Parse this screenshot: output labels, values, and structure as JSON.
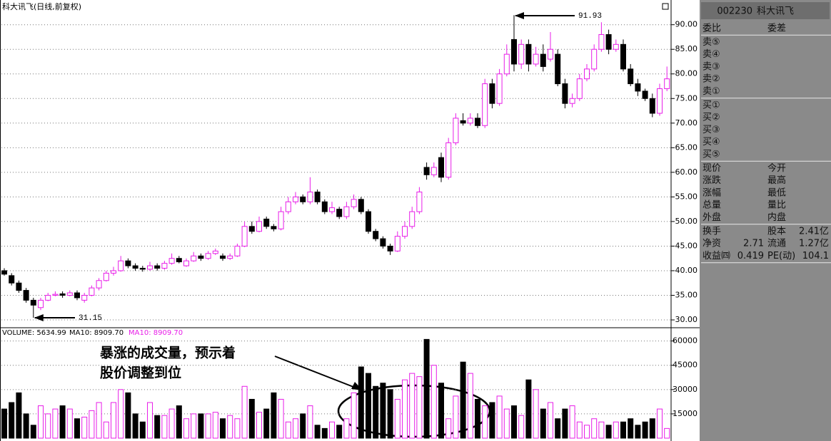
{
  "chart_data": [
    {
      "type": "candlestick",
      "title": "科大讯飞(日线,前复权)",
      "open": [
        40,
        39,
        37.5,
        36,
        34,
        32.5,
        34,
        35,
        35.3,
        35,
        35.5,
        34,
        35,
        36.5,
        38,
        39.5,
        40,
        42,
        41,
        40.5,
        40.3,
        41,
        40.5,
        41.5,
        42.5,
        41,
        42,
        43,
        42.5,
        43.5,
        43,
        42.5,
        43,
        45,
        49,
        48,
        50.5,
        49,
        48.5,
        52,
        54,
        55,
        54,
        56,
        54,
        52,
        52.5,
        51,
        53,
        54.5,
        52,
        48,
        46.5,
        45,
        44,
        47,
        49,
        52,
        61,
        59.5,
        63,
        59,
        66,
        70.5,
        70,
        71,
        69.5,
        78,
        74,
        80,
        87,
        82,
        86,
        82,
        84,
        83,
        84,
        78,
        74,
        75,
        79,
        81,
        85,
        88,
        85,
        86,
        81,
        78,
        76.5,
        75,
        72,
        77
      ],
      "high": [
        40.5,
        39.5,
        38,
        36.5,
        34.5,
        34.5,
        35.5,
        35.8,
        35.8,
        36,
        36,
        35.5,
        37,
        38.5,
        40,
        40.8,
        43,
        42.5,
        41.5,
        41,
        41.8,
        41.5,
        42,
        43.5,
        43,
        42.5,
        43.8,
        43.5,
        44,
        44.5,
        43.5,
        43.5,
        45.5,
        50,
        50,
        51,
        51,
        49.5,
        53,
        55,
        56,
        55.5,
        59,
        56.5,
        54.5,
        54,
        53,
        54,
        55.5,
        55,
        52.5,
        48.5,
        47,
        45.5,
        48,
        50,
        53,
        57,
        62,
        62,
        64,
        67,
        72,
        72,
        72,
        72,
        79,
        79,
        81,
        86,
        91.93,
        87,
        87,
        85.5,
        86,
        88.5,
        85,
        79,
        76,
        80,
        82,
        86,
        90.5,
        89,
        87,
        87,
        82,
        79,
        77,
        76,
        78,
        81.5
      ],
      "low": [
        39,
        37,
        35.5,
        33.5,
        31.15,
        32,
        33.8,
        34.8,
        34.5,
        34.8,
        34,
        33.5,
        34.8,
        36,
        37.8,
        39,
        39.8,
        40.5,
        40,
        39.8,
        40,
        40,
        40.2,
        41.2,
        41.5,
        40.8,
        41.8,
        42,
        42.2,
        43.2,
        42,
        42.2,
        42.8,
        44.8,
        47.5,
        47.8,
        48.5,
        48,
        48.2,
        51.5,
        53.5,
        53.5,
        53.5,
        53.5,
        51.5,
        51.5,
        50.5,
        50.5,
        52.5,
        51.5,
        47.5,
        46,
        44.5,
        43.2,
        43.8,
        46.5,
        48.5,
        51.5,
        58.5,
        59,
        58,
        58.5,
        65.5,
        69.5,
        69.5,
        69,
        69,
        73,
        73.5,
        79.5,
        80.5,
        81,
        80.5,
        81.5,
        80.5,
        82.5,
        77.5,
        73,
        73.2,
        74.5,
        78.5,
        80.5,
        84.5,
        84,
        84.5,
        80.5,
        77.5,
        75.5,
        74.5,
        71.2,
        71.5,
        76.5
      ],
      "close": [
        39.3,
        37.5,
        36,
        34,
        33,
        34,
        35,
        35.2,
        35,
        35.5,
        34.5,
        35,
        36.5,
        38,
        39.5,
        40,
        42,
        41,
        40.5,
        40.3,
        41,
        40.5,
        41.5,
        42.5,
        41.8,
        42,
        43,
        42.5,
        43.5,
        44,
        42.5,
        43,
        45,
        49,
        48,
        50,
        49,
        48.5,
        52,
        54,
        55,
        54,
        56,
        54,
        52,
        52.8,
        51,
        53,
        54.5,
        52,
        48,
        46.5,
        45,
        44,
        47,
        49,
        52,
        56,
        59.5,
        61,
        59,
        66,
        71,
        70,
        71,
        69.5,
        78,
        74,
        80,
        84,
        82,
        86,
        82,
        84,
        81.5,
        85,
        78,
        74,
        75,
        79,
        81,
        85,
        88,
        85,
        86,
        81,
        78,
        76.5,
        75,
        72,
        77,
        79
      ],
      "up_color": "#e81ee8",
      "down_color": "#000000",
      "ylim": [
        28.7,
        94.3
      ],
      "yticks": [
        {
          "value": 30,
          "label": "30.00"
        },
        {
          "value": 35,
          "label": "35.00"
        },
        {
          "value": 40,
          "label": "40.00"
        },
        {
          "value": 45,
          "label": "45.00"
        },
        {
          "value": 50,
          "label": "50.00"
        },
        {
          "value": 55,
          "label": "55.00"
        },
        {
          "value": 60,
          "label": "60.00"
        },
        {
          "value": 65,
          "label": "65.00"
        },
        {
          "value": 70,
          "label": "70.00"
        },
        {
          "value": 75,
          "label": "75.00"
        },
        {
          "value": 80,
          "label": "80.00"
        },
        {
          "value": 85,
          "label": "85.00"
        },
        {
          "value": 90,
          "label": "90.00"
        }
      ],
      "grid": true,
      "max_label": 91.93,
      "min_label": 31.15
    },
    {
      "type": "bar",
      "volume_label": "VOLUME: 5634.99",
      "ma_labels": [
        "MA10: 8909.70",
        "MA10: 8909.70"
      ],
      "values": [
        18000,
        22000,
        28000,
        15000,
        8000,
        20000,
        15000,
        18000,
        20000,
        18000,
        12000,
        13000,
        17000,
        22000,
        10000,
        22000,
        30000,
        28000,
        15000,
        10000,
        22000,
        14000,
        14000,
        18000,
        20000,
        12000,
        15000,
        15000,
        15000,
        16000,
        12000,
        14000,
        12000,
        32000,
        24000,
        16000,
        18000,
        28000,
        24000,
        10000,
        12000,
        15000,
        20000,
        8000,
        6000,
        10000,
        8000,
        12000,
        28000,
        44000,
        40000,
        32000,
        34000,
        30000,
        24000,
        36000,
        40000,
        38000,
        61000,
        45000,
        34000,
        12000,
        26000,
        47000,
        40000,
        24000,
        20000,
        22000,
        26000,
        18000,
        20000,
        14000,
        36000,
        30000,
        18000,
        22000,
        12000,
        18000,
        20000,
        10000,
        8000,
        12000,
        10000,
        8000,
        10000,
        10000,
        12000,
        8000,
        10000,
        12000,
        18000,
        6000
      ],
      "ylim": [
        0,
        66000
      ],
      "yticks": [
        15000,
        30000,
        45000,
        60000
      ],
      "grid": true,
      "annotation": [
        "暴涨的成交量，预示着",
        "股价调整到位"
      ]
    }
  ],
  "quote_panel": {
    "code": "002230",
    "name": "科大讯飞",
    "groups": [
      [
        {
          "label": "委比",
          "label2": "委差"
        }
      ],
      [
        {
          "label": "卖⑤"
        },
        {
          "label": "卖④"
        },
        {
          "label": "卖③"
        },
        {
          "label": "卖②"
        },
        {
          "label": "卖①"
        }
      ],
      [
        {
          "label": "买①"
        },
        {
          "label": "买②"
        },
        {
          "label": "买③"
        },
        {
          "label": "买④"
        },
        {
          "label": "买⑤"
        }
      ],
      [
        {
          "label": "现价",
          "label2": "今开"
        },
        {
          "label": "涨跌",
          "label2": "最高"
        },
        {
          "label": "涨幅",
          "label2": "最低"
        },
        {
          "label": "总量",
          "label2": "量比"
        },
        {
          "label": "外盘",
          "label2": "内盘"
        }
      ],
      [
        {
          "label": "换手",
          "label2": "股本",
          "value2": "2.41亿"
        },
        {
          "label": "净资",
          "value": 2.71,
          "label2": "流通",
          "value2": "1.27亿"
        },
        {
          "label": "收益㈣",
          "value": 0.419,
          "label2": "PE(动)",
          "value2": 104.1
        }
      ]
    ]
  }
}
